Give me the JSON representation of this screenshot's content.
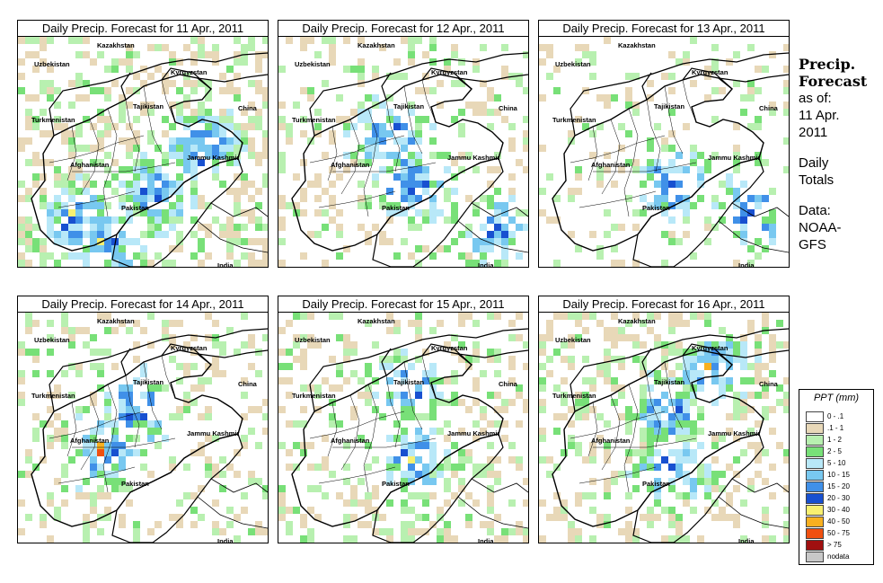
{
  "panels": [
    {
      "title": "Daily Precip. Forecast for  11 Apr., 2011",
      "seed": 11,
      "density": 0.38,
      "hotspots": [
        [
          95,
          230
        ],
        [
          150,
          170
        ],
        [
          200,
          120
        ],
        [
          60,
          200
        ]
      ]
    },
    {
      "title": "Daily Precip. Forecast for  12 Apr., 2011",
      "seed": 12,
      "density": 0.22,
      "hotspots": [
        [
          240,
          215
        ],
        [
          145,
          160
        ],
        [
          120,
          110
        ]
      ]
    },
    {
      "title": "Daily Precip. Forecast for  13 Apr., 2011",
      "seed": 13,
      "density": 0.16,
      "hotspots": [
        [
          145,
          160
        ],
        [
          230,
          190
        ]
      ]
    },
    {
      "title": "Daily Precip. Forecast for  14 Apr., 2011",
      "seed": 14,
      "density": 0.24,
      "hotspots": [
        [
          130,
          100
        ],
        [
          90,
          150
        ]
      ]
    },
    {
      "title": "Daily Precip. Forecast for  15 Apr., 2011",
      "seed": 15,
      "density": 0.3,
      "hotspots": [
        [
          145,
          160
        ],
        [
          140,
          80
        ]
      ]
    },
    {
      "title": "Daily Precip. Forecast for  16 Apr., 2011",
      "seed": 16,
      "density": 0.34,
      "hotspots": [
        [
          145,
          170
        ],
        [
          140,
          110
        ],
        [
          190,
          60
        ]
      ]
    }
  ],
  "map_labels": [
    "Kazakhstan",
    "Uzbekistan",
    "Kyrgyzstan",
    "Tajikistan",
    "China",
    "Turkmenistan",
    "Jammu Kashmir",
    "Afghanistan",
    "Pakistan",
    "India"
  ],
  "sidebar": {
    "heading_1": "Precip.",
    "heading_2": "Forecast",
    "line_1": "as of:",
    "line_2": "11 Apr.",
    "line_3": "2011",
    "line_4": "Daily",
    "line_5": "Totals",
    "line_6": "Data:",
    "line_7": "NOAA-",
    "line_8": "GFS"
  },
  "legend": {
    "title": "PPT (mm)",
    "items": [
      {
        "label": "0 - .1",
        "color": "#ffffff"
      },
      {
        "label": ".1 - 1",
        "color": "#e8d8b8"
      },
      {
        "label": "1 - 2",
        "color": "#b8f0b0"
      },
      {
        "label": "2 - 5",
        "color": "#78e078"
      },
      {
        "label": "5 - 10",
        "color": "#b8e8f8"
      },
      {
        "label": "10 - 15",
        "color": "#78c8f0"
      },
      {
        "label": "15 - 20",
        "color": "#4090e8"
      },
      {
        "label": "20 - 30",
        "color": "#1850d0"
      },
      {
        "label": "30 - 40",
        "color": "#f8f070"
      },
      {
        "label": "40 - 50",
        "color": "#f8b020"
      },
      {
        "label": "50 - 75",
        "color": "#f05010"
      },
      {
        "label": "> 75",
        "color": "#a01010"
      },
      {
        "label": "nodata",
        "color": "#c8c8c8"
      }
    ]
  }
}
